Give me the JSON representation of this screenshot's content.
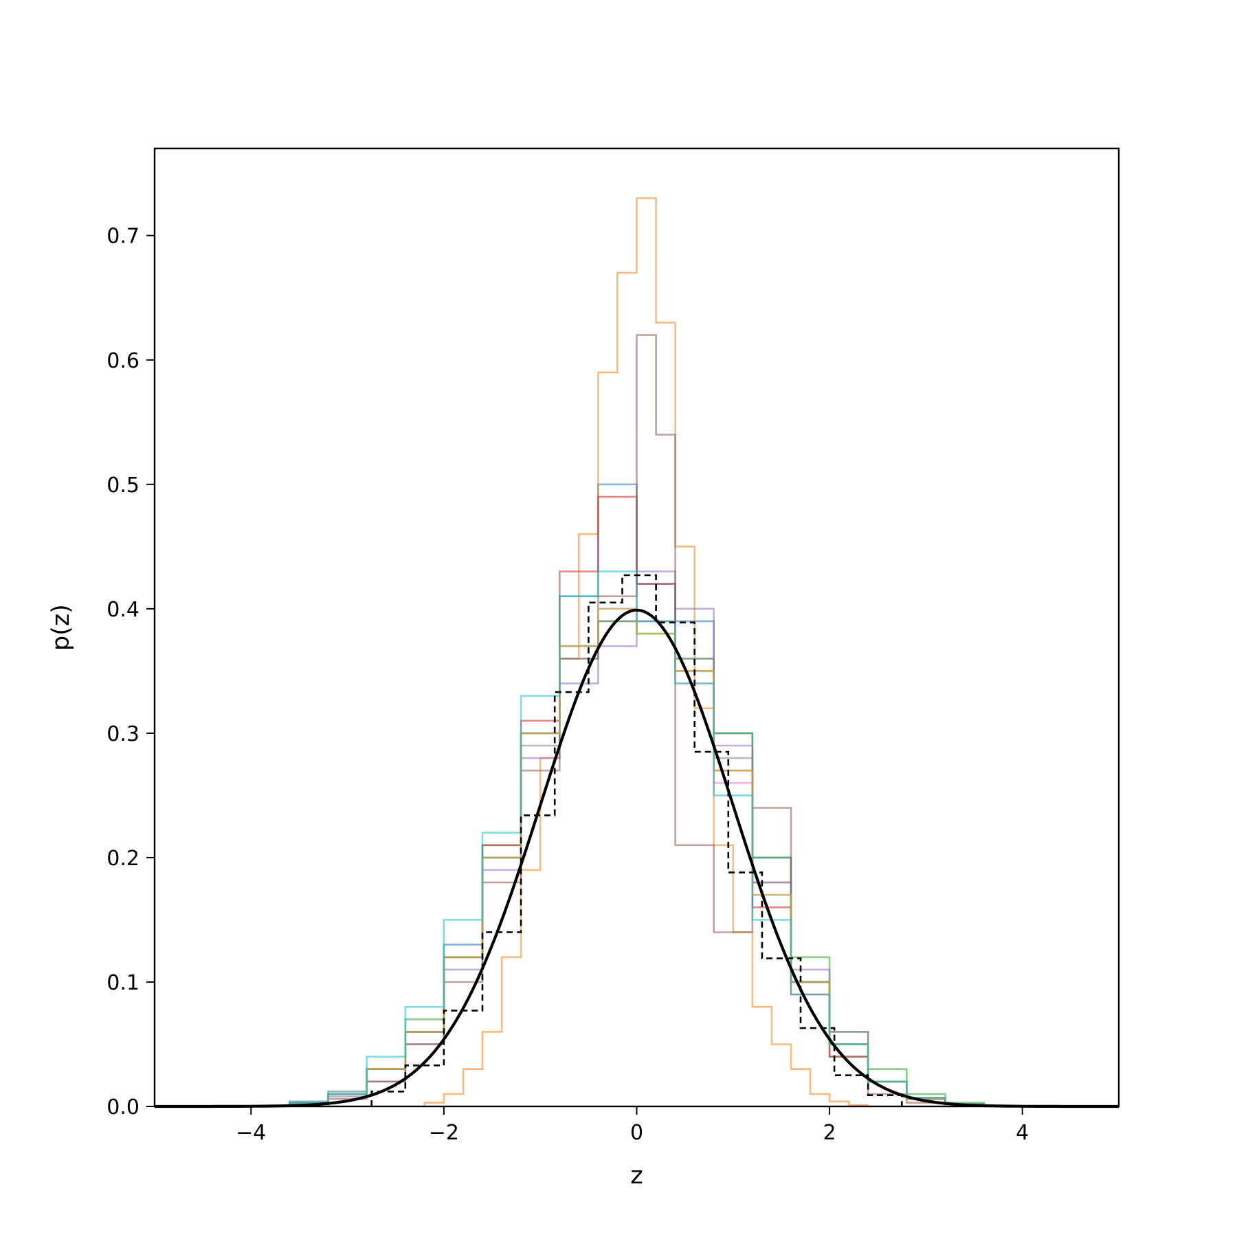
{
  "chart_data": {
    "type": "line",
    "title": "",
    "xlabel": "z",
    "ylabel": "p(z)",
    "xlim": [
      -5,
      5
    ],
    "ylim": [
      0,
      0.77
    ],
    "xticks": [
      -4,
      -2,
      0,
      2,
      4
    ],
    "xtick_labels": [
      "−4",
      "−2",
      "0",
      "2",
      "4"
    ],
    "yticks": [
      0.0,
      0.1,
      0.2,
      0.3,
      0.4,
      0.5,
      0.6,
      0.7
    ],
    "ytick_labels": [
      "0.0",
      "0.1",
      "0.2",
      "0.3",
      "0.4",
      "0.5",
      "0.6",
      "0.7"
    ],
    "grid": false,
    "legend": "none",
    "step_series": [
      {
        "color": "#1f77b4",
        "edges": [
          -3.6,
          -3.2,
          -2.8,
          -2.4,
          -2.0,
          -1.6,
          -1.2,
          -0.8,
          -0.4,
          0.0,
          0.4,
          0.8,
          1.2,
          1.6,
          2.0,
          2.4,
          2.8,
          3.2,
          3.6
        ],
        "values": [
          0.004,
          0.012,
          0.03,
          0.06,
          0.13,
          0.2,
          0.3,
          0.41,
          0.5,
          0.42,
          0.39,
          0.3,
          0.2,
          0.1,
          0.05,
          0.02,
          0.006,
          0.002
        ]
      },
      {
        "color": "#ff7f0e",
        "edges": [
          -2.2,
          -2.0,
          -1.8,
          -1.6,
          -1.4,
          -1.2,
          -1.0,
          -0.8,
          -0.6,
          -0.4,
          -0.2,
          0.0,
          0.2,
          0.4,
          0.6,
          0.8,
          1.0,
          1.2,
          1.4,
          1.6,
          1.8,
          2.0,
          2.2,
          2.4
        ],
        "values": [
          0.003,
          0.01,
          0.03,
          0.06,
          0.12,
          0.19,
          0.28,
          0.36,
          0.46,
          0.59,
          0.67,
          0.73,
          0.63,
          0.45,
          0.32,
          0.21,
          0.14,
          0.08,
          0.05,
          0.03,
          0.01,
          0.004,
          0.001
        ]
      },
      {
        "color": "#2ca02c",
        "edges": [
          -3.6,
          -3.2,
          -2.8,
          -2.4,
          -2.0,
          -1.6,
          -1.2,
          -0.8,
          -0.4,
          0.0,
          0.4,
          0.8,
          1.2,
          1.6,
          2.0,
          2.4,
          2.8,
          3.2,
          3.6
        ],
        "values": [
          0.003,
          0.01,
          0.03,
          0.07,
          0.12,
          0.21,
          0.3,
          0.37,
          0.39,
          0.38,
          0.36,
          0.3,
          0.2,
          0.12,
          0.06,
          0.03,
          0.01,
          0.003
        ]
      },
      {
        "color": "#d62728",
        "edges": [
          -3.6,
          -3.2,
          -2.8,
          -2.4,
          -2.0,
          -1.6,
          -1.2,
          -0.8,
          -0.4,
          0.0,
          0.4,
          0.8,
          1.2,
          1.6,
          2.0,
          2.4,
          2.8,
          3.2,
          3.6
        ],
        "values": [
          0.002,
          0.01,
          0.03,
          0.06,
          0.12,
          0.21,
          0.31,
          0.43,
          0.49,
          0.42,
          0.35,
          0.27,
          0.16,
          0.09,
          0.04,
          0.02,
          0.006,
          0.002
        ]
      },
      {
        "color": "#9467bd",
        "edges": [
          -3.6,
          -3.2,
          -2.8,
          -2.4,
          -2.0,
          -1.6,
          -1.2,
          -0.8,
          -0.4,
          0.0,
          0.4,
          0.8,
          1.2,
          1.6,
          2.0,
          2.4,
          2.8,
          3.2,
          3.6
        ],
        "values": [
          0.002,
          0.008,
          0.02,
          0.05,
          0.11,
          0.19,
          0.28,
          0.34,
          0.37,
          0.43,
          0.4,
          0.29,
          0.18,
          0.11,
          0.06,
          0.02,
          0.006,
          0.002
        ]
      },
      {
        "color": "#8c564b",
        "edges": [
          -3.2,
          -2.8,
          -2.4,
          -2.0,
          -1.6,
          -1.2,
          -0.8,
          -0.4,
          0.0,
          0.2,
          0.4,
          0.8,
          1.2,
          1.6,
          2.0,
          2.4,
          2.8,
          3.2
        ],
        "values": [
          0.006,
          0.02,
          0.05,
          0.1,
          0.18,
          0.27,
          0.36,
          0.41,
          0.62,
          0.54,
          0.21,
          0.14,
          0.24,
          0.1,
          0.04,
          0.01,
          0.003
        ]
      },
      {
        "color": "#e377c2",
        "edges": [
          -3.6,
          -3.2,
          -2.8,
          -2.4,
          -2.0,
          -1.6,
          -1.2,
          -0.8,
          -0.4,
          0.0,
          0.4,
          0.8,
          1.2,
          1.6,
          2.0,
          2.4,
          2.8,
          3.2,
          3.6
        ],
        "values": [
          0.003,
          0.01,
          0.03,
          0.06,
          0.12,
          0.2,
          0.3,
          0.37,
          0.4,
          0.39,
          0.34,
          0.26,
          0.17,
          0.1,
          0.05,
          0.02,
          0.007,
          0.002
        ]
      },
      {
        "color": "#7f7f7f",
        "edges": [
          -3.6,
          -3.2,
          -2.8,
          -2.4,
          -2.0,
          -1.6,
          -1.2,
          -0.8,
          -0.4,
          0.0,
          0.4,
          0.8,
          1.2,
          1.6,
          2.0,
          2.4,
          2.8,
          3.2,
          3.6
        ],
        "values": [
          0.003,
          0.01,
          0.03,
          0.06,
          0.12,
          0.2,
          0.29,
          0.36,
          0.39,
          0.39,
          0.36,
          0.28,
          0.18,
          0.1,
          0.05,
          0.02,
          0.007,
          0.002
        ]
      },
      {
        "color": "#bcbd22",
        "edges": [
          -3.6,
          -3.2,
          -2.8,
          -2.4,
          -2.0,
          -1.6,
          -1.2,
          -0.8,
          -0.4,
          0.0,
          0.4,
          0.8,
          1.2,
          1.6,
          2.0,
          2.4,
          2.8,
          3.2,
          3.6
        ],
        "values": [
          0.002,
          0.01,
          0.03,
          0.06,
          0.12,
          0.2,
          0.3,
          0.37,
          0.4,
          0.38,
          0.35,
          0.27,
          0.17,
          0.1,
          0.05,
          0.02,
          0.006,
          0.002
        ]
      },
      {
        "color": "#17becf",
        "edges": [
          -3.6,
          -3.2,
          -2.8,
          -2.4,
          -2.0,
          -1.6,
          -1.2,
          -0.8,
          -0.4,
          0.0,
          0.4,
          0.8,
          1.2,
          1.6,
          2.0,
          2.4,
          2.8,
          3.2,
          3.6
        ],
        "values": [
          0.003,
          0.01,
          0.04,
          0.08,
          0.15,
          0.22,
          0.33,
          0.41,
          0.43,
          0.39,
          0.34,
          0.25,
          0.15,
          0.09,
          0.05,
          0.02,
          0.007,
          0.002
        ]
      }
    ],
    "dashed_histogram": {
      "color": "#000000",
      "edges": [
        -2.75,
        -2.4,
        -2.0,
        -1.6,
        -1.2,
        -0.85,
        -0.5,
        -0.15,
        0.2,
        0.6,
        0.95,
        1.3,
        1.7,
        2.05,
        2.4,
        2.75
      ],
      "values": [
        0.012,
        0.033,
        0.077,
        0.14,
        0.234,
        0.333,
        0.405,
        0.427,
        0.389,
        0.285,
        0.188,
        0.119,
        0.063,
        0.025,
        0.009
      ]
    },
    "curve": {
      "name": "standard normal pdf",
      "color": "#000000",
      "mean": 0,
      "sd": 1,
      "x_range": [
        -5,
        5
      ],
      "peak": 0.399
    }
  }
}
